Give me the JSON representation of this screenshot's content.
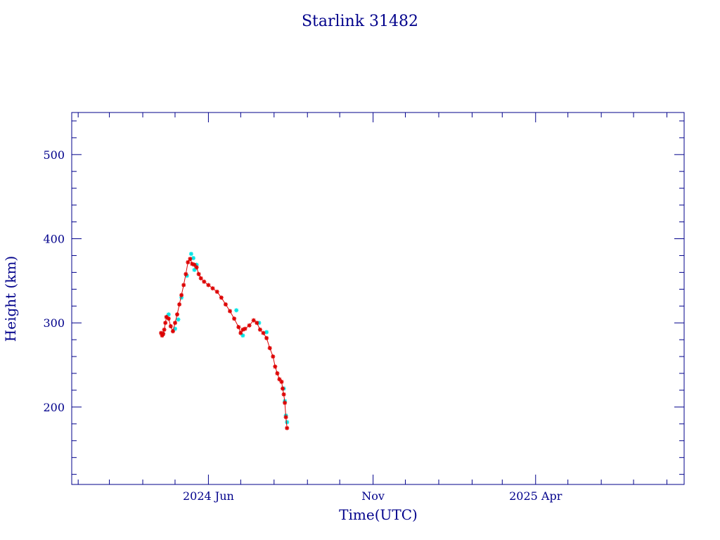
{
  "chart_data": {
    "type": "scatter",
    "title": "Starlink 31482",
    "xlabel": "Time(UTC)",
    "ylabel": "Height (km)",
    "x_range": [
      "2024-01-26",
      "2025-08-17"
    ],
    "ylim": [
      108,
      550
    ],
    "y_major_ticks": [
      200,
      300,
      400,
      500
    ],
    "y_minor_step": 20,
    "x_tick_labels": [
      {
        "date": "2024-06-01",
        "label": "2024 Jun"
      },
      {
        "date": "2024-11-01",
        "label": "Nov"
      },
      {
        "date": "2025-04-01",
        "label": "2025 Apr"
      }
    ],
    "x_minor_tick_months": [
      "2024-02-01",
      "2024-03-01",
      "2024-04-01",
      "2024-05-01",
      "2024-07-01",
      "2024-08-01",
      "2024-09-01",
      "2024-10-01",
      "2024-12-01",
      "2025-01-01",
      "2025-02-01",
      "2025-03-01",
      "2025-05-01",
      "2025-06-01",
      "2025-07-01",
      "2025-08-01"
    ],
    "grid": false,
    "series": [
      {
        "color": "#00e5e5",
        "x": [
          "2024-04-20",
          "2024-04-25",
          "2024-05-01",
          "2024-05-04",
          "2024-05-07",
          "2024-05-12",
          "2024-05-16",
          "2024-05-18",
          "2024-05-19",
          "2024-05-21",
          "2024-06-27",
          "2024-07-03",
          "2024-07-18",
          "2024-07-25",
          "2024-08-10",
          "2024-08-11",
          "2024-08-12",
          "2024-08-13"
        ],
        "y": [
          287,
          310,
          293,
          304,
          330,
          356,
          382,
          377,
          363,
          369,
          315,
          285,
          300,
          289,
          222,
          207,
          190,
          182
        ]
      },
      {
        "color": "#dd0000",
        "x": [
          "2024-04-18",
          "2024-04-19",
          "2024-04-20",
          "2024-04-21",
          "2024-04-22",
          "2024-04-23",
          "2024-04-25",
          "2024-04-27",
          "2024-04-29",
          "2024-05-01",
          "2024-05-03",
          "2024-05-05",
          "2024-05-07",
          "2024-05-09",
          "2024-05-11",
          "2024-05-13",
          "2024-05-15",
          "2024-05-17",
          "2024-05-19",
          "2024-05-21",
          "2024-05-23",
          "2024-05-25",
          "2024-05-28",
          "2024-06-01",
          "2024-06-05",
          "2024-06-09",
          "2024-06-13",
          "2024-06-17",
          "2024-06-21",
          "2024-06-25",
          "2024-06-29",
          "2024-07-01",
          "2024-07-03",
          "2024-07-05",
          "2024-07-09",
          "2024-07-13",
          "2024-07-16",
          "2024-07-19",
          "2024-07-22",
          "2024-07-25",
          "2024-07-28",
          "2024-07-31",
          "2024-08-02",
          "2024-08-04",
          "2024-08-06",
          "2024-08-08",
          "2024-08-09",
          "2024-08-10",
          "2024-08-11",
          "2024-08-12",
          "2024-08-13"
        ],
        "y": [
          288,
          285,
          287,
          292,
          300,
          307,
          305,
          296,
          290,
          300,
          310,
          322,
          333,
          345,
          358,
          372,
          376,
          370,
          369,
          366,
          358,
          353,
          349,
          345,
          341,
          337,
          330,
          322,
          314,
          305,
          295,
          288,
          292,
          293,
          297,
          303,
          300,
          292,
          288,
          282,
          270,
          260,
          248,
          240,
          233,
          230,
          222,
          215,
          205,
          188,
          175
        ]
      }
    ]
  }
}
